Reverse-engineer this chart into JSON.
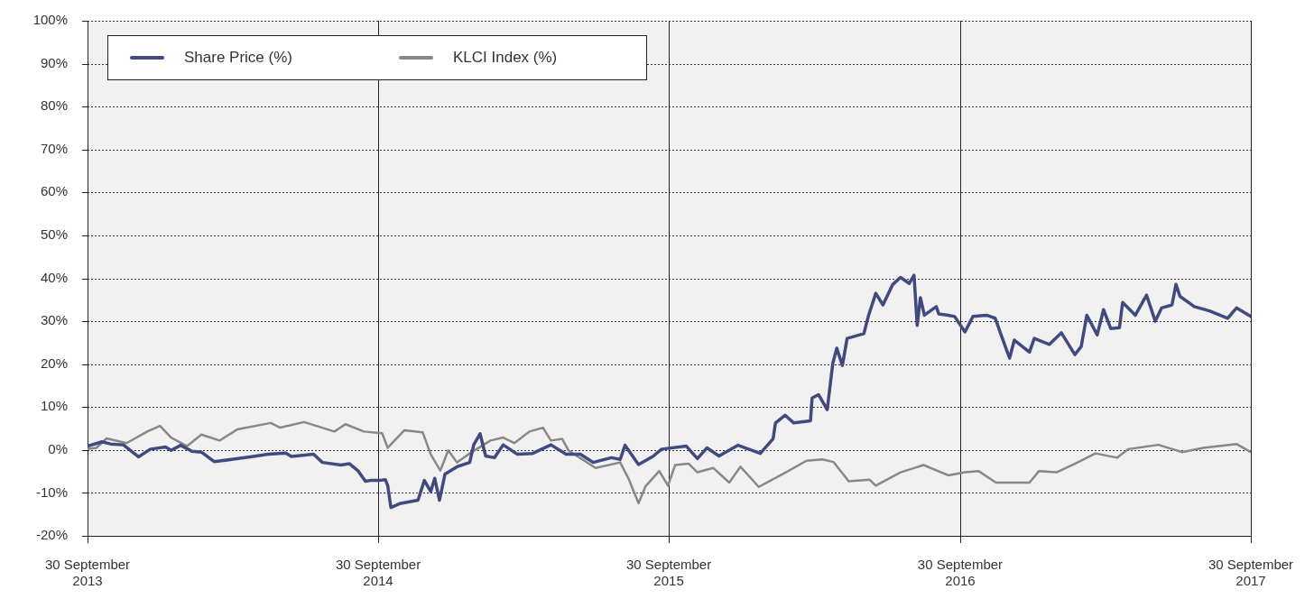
{
  "chart_data": {
    "type": "line",
    "xlim": [
      "2013-09-30",
      "2017-09-30"
    ],
    "xticks": [
      {
        "value": "2013-09-30",
        "label": "30 September 2013"
      },
      {
        "value": "2014-09-30",
        "label": "30 September 2014"
      },
      {
        "value": "2015-09-30",
        "label": "30 September 2015"
      },
      {
        "value": "2016-09-30",
        "label": "30 September 2016"
      },
      {
        "value": "2017-09-30",
        "label": "30 September 2017"
      }
    ],
    "ylim": [
      -20,
      100
    ],
    "yticks": [
      {
        "value": -20,
        "label": "-20%"
      },
      {
        "value": -10,
        "label": "-10%"
      },
      {
        "value": 0,
        "label": "0%"
      },
      {
        "value": 10,
        "label": "10%"
      },
      {
        "value": 20,
        "label": "20%"
      },
      {
        "value": 30,
        "label": "30%"
      },
      {
        "value": 40,
        "label": "40%"
      },
      {
        "value": 50,
        "label": "50%"
      },
      {
        "value": 60,
        "label": "60%"
      },
      {
        "value": 70,
        "label": "70%"
      },
      {
        "value": 80,
        "label": "80%"
      },
      {
        "value": 90,
        "label": "90%"
      },
      {
        "value": 100,
        "label": "100%"
      }
    ],
    "grid": true,
    "legend": "top left",
    "marker": "none",
    "line_style": "solid",
    "series": [
      {
        "name": "Share Price (%)",
        "color": "#404a7f",
        "x": [
          "2013-09-30",
          "2013-10-18",
          "2013-10-29",
          "2013-11-14",
          "2013-12-03",
          "2013-12-18",
          "2014-01-06",
          "2014-01-13",
          "2014-01-25",
          "2014-02-08",
          "2014-02-20",
          "2014-03-08",
          "2014-03-30",
          "2014-04-22",
          "2014-05-15",
          "2014-06-06",
          "2014-06-13",
          "2014-07-11",
          "2014-07-22",
          "2014-08-14",
          "2014-08-25",
          "2014-09-05",
          "2014-09-14",
          "2014-09-20",
          "2014-10-01",
          "2014-10-09",
          "2014-10-12",
          "2014-10-16",
          "2014-10-27",
          "2014-11-19",
          "2014-11-27",
          "2014-12-05",
          "2014-12-10",
          "2014-12-16",
          "2014-12-23",
          "2015-01-07",
          "2015-01-23",
          "2015-01-28",
          "2015-02-05",
          "2015-02-12",
          "2015-02-23",
          "2015-03-06",
          "2015-03-24",
          "2015-04-12",
          "2015-05-05",
          "2015-05-24",
          "2015-06-11",
          "2015-06-27",
          "2015-07-20",
          "2015-07-31",
          "2015-08-06",
          "2015-08-23",
          "2015-09-10",
          "2015-09-21",
          "2015-10-22",
          "2015-11-05",
          "2015-11-17",
          "2015-12-02",
          "2015-12-26",
          "2016-01-23",
          "2016-02-08",
          "2016-02-11",
          "2016-02-23",
          "2016-03-05",
          "2016-03-26",
          "2016-03-28",
          "2016-04-05",
          "2016-04-16",
          "2016-04-23",
          "2016-04-28",
          "2016-05-05",
          "2016-05-11",
          "2016-06-01",
          "2016-06-07",
          "2016-06-16",
          "2016-06-25",
          "2016-07-07",
          "2016-07-17",
          "2016-07-28",
          "2016-08-03",
          "2016-08-07",
          "2016-08-11",
          "2016-08-16",
          "2016-08-31",
          "2016-09-03",
          "2016-09-15",
          "2016-09-23",
          "2016-10-06",
          "2016-10-16",
          "2016-11-02",
          "2016-11-13",
          "2016-11-20",
          "2016-12-01",
          "2016-12-07",
          "2016-12-26",
          "2017-01-01",
          "2017-01-20",
          "2017-02-04",
          "2017-02-21",
          "2017-03-01",
          "2017-03-08",
          "2017-03-21",
          "2017-03-29",
          "2017-04-07",
          "2017-04-18",
          "2017-04-22",
          "2017-05-08",
          "2017-05-22",
          "2017-06-02",
          "2017-06-10",
          "2017-06-23",
          "2017-06-28",
          "2017-07-03",
          "2017-07-21",
          "2017-08-09",
          "2017-09-01",
          "2017-09-12",
          "2017-09-30"
        ],
        "values": [
          0.9,
          1.9,
          1.4,
          1.2,
          -1.6,
          0.2,
          0.7,
          -0.1,
          1.1,
          -0.3,
          -0.5,
          -2.7,
          -2.2,
          -1.6,
          -1.0,
          -0.7,
          -1.5,
          -1.0,
          -2.9,
          -3.5,
          -3.2,
          -4.9,
          -7.3,
          -7.1,
          -7.1,
          -6.9,
          -8.3,
          -13.4,
          -12.5,
          -11.7,
          -7.1,
          -9.7,
          -6.6,
          -11.7,
          -5.6,
          -3.9,
          -2.9,
          1.2,
          3.8,
          -1.4,
          -1.8,
          1.2,
          -1.0,
          -0.8,
          1.2,
          -1.0,
          -1.0,
          -2.9,
          -1.8,
          -2.2,
          1.1,
          -3.4,
          -1.5,
          0.2,
          0.9,
          -2.0,
          0.5,
          -1.4,
          1.1,
          -0.8,
          2.6,
          6.3,
          8.1,
          6.3,
          6.8,
          12.1,
          12.9,
          9.4,
          20.2,
          23.7,
          19.7,
          26.0,
          27.1,
          31.4,
          36.5,
          33.8,
          38.5,
          40.2,
          38.8,
          40.7,
          29.0,
          35.5,
          31.4,
          33.4,
          31.7,
          31.4,
          31.1,
          27.5,
          31.1,
          31.4,
          30.7,
          27.0,
          21.4,
          25.6,
          22.8,
          26.0,
          24.6,
          27.3,
          22.2,
          24.1,
          31.4,
          26.8,
          32.7,
          28.3,
          28.5,
          34.4,
          31.4,
          36.1,
          30.0,
          33.1,
          33.8,
          38.6,
          35.8,
          33.4,
          32.4,
          30.7,
          33.1,
          31.1
        ]
      },
      {
        "name": "KLCI Index (%)",
        "color": "#888888",
        "x": [
          "2013-09-30",
          "2013-10-11",
          "2013-10-24",
          "2013-11-18",
          "2013-12-14",
          "2013-12-30",
          "2014-01-13",
          "2014-02-02",
          "2014-02-20",
          "2014-03-15",
          "2014-04-06",
          "2014-05-18",
          "2014-05-30",
          "2014-06-29",
          "2014-08-06",
          "2014-08-20",
          "2014-09-12",
          "2014-10-05",
          "2014-10-12",
          "2014-11-02",
          "2014-11-25",
          "2014-12-05",
          "2014-12-17",
          "2014-12-27",
          "2015-01-07",
          "2015-01-23",
          "2015-02-18",
          "2015-03-06",
          "2015-03-20",
          "2015-04-08",
          "2015-04-25",
          "2015-05-05",
          "2015-05-19",
          "2015-05-27",
          "2015-06-30",
          "2015-07-31",
          "2015-08-11",
          "2015-08-23",
          "2015-09-01",
          "2015-09-18",
          "2015-09-29",
          "2015-10-08",
          "2015-10-25",
          "2015-11-05",
          "2015-11-25",
          "2015-12-15",
          "2015-12-29",
          "2016-01-21",
          "2016-02-24",
          "2016-03-21",
          "2016-04-10",
          "2016-04-24",
          "2016-05-13",
          "2016-06-08",
          "2016-06-16",
          "2016-07-17",
          "2016-08-15",
          "2016-09-15",
          "2016-10-06",
          "2016-10-23",
          "2016-11-14",
          "2016-12-26",
          "2017-01-07",
          "2017-01-29",
          "2017-02-21",
          "2017-03-19",
          "2017-04-15",
          "2017-04-29",
          "2017-06-06",
          "2017-07-06",
          "2017-08-01",
          "2017-09-12",
          "2017-09-30"
        ],
        "values": [
          0.2,
          0.5,
          2.7,
          1.6,
          4.3,
          5.6,
          2.9,
          0.9,
          3.6,
          2.2,
          4.8,
          6.3,
          5.2,
          6.5,
          4.3,
          6.0,
          4.3,
          3.9,
          0.5,
          4.6,
          4.1,
          -1.0,
          -4.8,
          -0.1,
          -2.9,
          -0.8,
          2.2,
          2.9,
          1.6,
          4.3,
          5.2,
          2.2,
          2.6,
          -0.1,
          -4.2,
          -2.9,
          -6.9,
          -12.4,
          -8.4,
          -4.9,
          -8.3,
          -3.5,
          -3.2,
          -5.2,
          -4.2,
          -7.6,
          -3.9,
          -8.6,
          -5.2,
          -2.5,
          -2.2,
          -2.8,
          -7.3,
          -6.9,
          -8.3,
          -5.2,
          -3.5,
          -5.9,
          -5.2,
          -4.9,
          -7.6,
          -7.6,
          -4.9,
          -5.2,
          -3.2,
          -0.8,
          -1.8,
          0.2,
          1.2,
          -0.5,
          0.5,
          1.4,
          -0.5
        ]
      }
    ]
  }
}
